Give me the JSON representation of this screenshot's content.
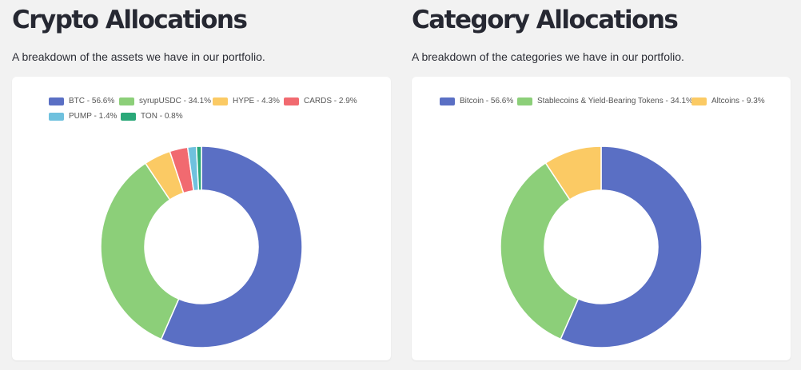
{
  "sections": [
    {
      "title": "Crypto Allocations",
      "subtitle": "A breakdown of the assets we have in our portfolio."
    },
    {
      "title": "Category Allocations",
      "subtitle": "A breakdown of the categories we have in our portfolio."
    }
  ],
  "chart_data": [
    {
      "type": "pie",
      "variant": "doughnut",
      "legend_position": "top",
      "categories": [
        "BTC",
        "syrupUSDC",
        "HYPE",
        "CARDS",
        "PUMP",
        "TON"
      ],
      "values": [
        56.6,
        34.1,
        4.3,
        2.9,
        1.4,
        0.8
      ],
      "legend_labels": [
        "BTC - 56.6%",
        "syrupUSDC - 34.1%",
        "HYPE - 4.3%",
        "CARDS - 2.9%",
        "PUMP - 1.4%",
        "TON - 0.8%"
      ],
      "colors": [
        "#5a6fc4",
        "#8ccf79",
        "#fbca64",
        "#f16a70",
        "#6fc1de",
        "#2aa878"
      ]
    },
    {
      "type": "pie",
      "variant": "doughnut",
      "legend_position": "top",
      "categories": [
        "Bitcoin",
        "Stablecoins & Yield-Bearing Tokens",
        "Altcoins"
      ],
      "values": [
        56.6,
        34.1,
        9.3
      ],
      "legend_labels": [
        "Bitcoin - 56.6%",
        "Stablecoins & Yield-Bearing Tokens - 34.1%",
        "Altcoins - 9.3%"
      ],
      "colors": [
        "#5a6fc4",
        "#8ccf79",
        "#fbca64"
      ]
    }
  ]
}
